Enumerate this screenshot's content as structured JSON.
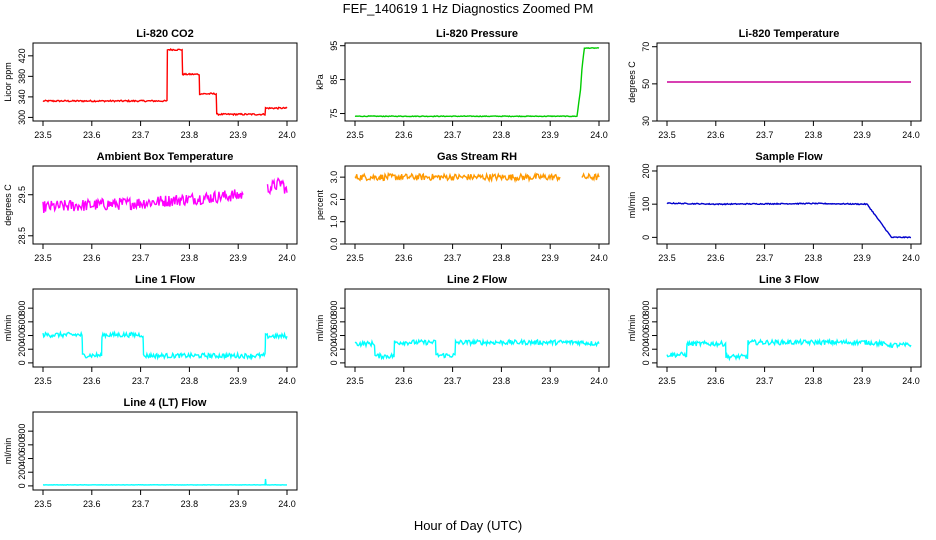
{
  "figure": {
    "title": "FEF_140619  1 Hz Diagnostics Zoomed PM",
    "xlabel": "Hour of Day (UTC)"
  },
  "chart_data": [
    {
      "type": "line",
      "title": "Li-820 CO2",
      "ylabel": "Licor ppm",
      "color": "#ff0000",
      "xlim": [
        23.5,
        24.0
      ],
      "ylim": [
        293,
        445
      ],
      "xticks": [
        "23.5",
        "23.6",
        "23.7",
        "23.8",
        "23.9",
        "24.0"
      ],
      "yticks": [
        "300",
        "340",
        "380",
        "420"
      ],
      "noise": 1.5,
      "segments": [
        [
          [
            23.5,
            332
          ],
          [
            23.754,
            332
          ],
          [
            23.755,
            432
          ],
          [
            23.785,
            432
          ],
          [
            23.786,
            384
          ],
          [
            23.82,
            384
          ],
          [
            23.821,
            346
          ],
          [
            23.855,
            346
          ],
          [
            23.856,
            306
          ],
          [
            23.955,
            306
          ],
          [
            23.956,
            318
          ],
          [
            24.0,
            318
          ]
        ]
      ]
    },
    {
      "type": "line",
      "title": "Li-820 Pressure",
      "ylabel": "kPa",
      "color": "#00cc00",
      "xlim": [
        23.5,
        24.0
      ],
      "ylim": [
        72.8,
        95.8
      ],
      "xticks": [
        "23.5",
        "23.6",
        "23.7",
        "23.8",
        "23.9",
        "24.0"
      ],
      "yticks": [
        "75",
        "85",
        "95"
      ],
      "noise": 0.1,
      "segments": [
        [
          [
            23.5,
            74.2
          ],
          [
            23.955,
            74.2
          ],
          [
            23.962,
            82
          ],
          [
            23.965,
            88
          ],
          [
            23.97,
            94.3
          ],
          [
            24.0,
            94.3
          ]
        ]
      ]
    },
    {
      "type": "line",
      "title": "Li-820 Temperature",
      "ylabel": "degrees C",
      "color": "#cc0099",
      "xlim": [
        23.5,
        24.0
      ],
      "ylim": [
        30,
        72
      ],
      "xticks": [
        "23.5",
        "23.6",
        "23.7",
        "23.8",
        "23.9",
        "24.0"
      ],
      "yticks": [
        "30",
        "50",
        "70"
      ],
      "noise": 0,
      "segments": [
        [
          [
            23.5,
            51
          ],
          [
            24.0,
            51
          ]
        ]
      ]
    },
    {
      "type": "line",
      "title": "Ambient Box Temperature",
      "ylabel": "degrees C",
      "color": "#ff00ff",
      "xlim": [
        23.5,
        24.0
      ],
      "ylim": [
        28.3,
        30.2
      ],
      "xticks": [
        "23.5",
        "23.6",
        "23.7",
        "23.8",
        "23.9",
        "24.0"
      ],
      "yticks": [
        "28.5",
        "29.5"
      ],
      "noise": 0.15,
      "segments": [
        [
          [
            23.5,
            29.2
          ],
          [
            23.7,
            29.3
          ],
          [
            23.91,
            29.5
          ]
        ],
        [
          [
            23.96,
            29.65
          ],
          [
            23.99,
            29.8
          ],
          [
            24.0,
            29.55
          ]
        ]
      ]
    },
    {
      "type": "line",
      "title": "Gas Stream RH",
      "ylabel": "percent",
      "color": "#ff9900",
      "xlim": [
        23.5,
        24.0
      ],
      "ylim": [
        0,
        3.5
      ],
      "xticks": [
        "23.5",
        "23.6",
        "23.7",
        "23.8",
        "23.9",
        "24.0"
      ],
      "yticks": [
        "0.0",
        "1.0",
        "2.0",
        "3.0"
      ],
      "noise": 0.15,
      "segments": [
        [
          [
            23.5,
            3.0
          ],
          [
            23.92,
            3.0
          ]
        ],
        [
          [
            23.965,
            3.0
          ],
          [
            24.0,
            3.0
          ]
        ]
      ]
    },
    {
      "type": "line",
      "title": "Sample Flow",
      "ylabel": "ml/min",
      "color": "#0000cc",
      "xlim": [
        23.5,
        24.0
      ],
      "ylim": [
        -20,
        215
      ],
      "xticks": [
        "23.5",
        "23.6",
        "23.7",
        "23.8",
        "23.9",
        "24.0"
      ],
      "yticks": [
        "0",
        "100",
        "200"
      ],
      "noise": 1.5,
      "segments": [
        [
          [
            23.5,
            103
          ],
          [
            23.6,
            100
          ],
          [
            23.7,
            101
          ],
          [
            23.8,
            102
          ],
          [
            23.91,
            100
          ],
          [
            23.96,
            0
          ],
          [
            24.0,
            0
          ]
        ]
      ]
    },
    {
      "type": "line",
      "title": "Line 1 Flow",
      "ylabel": "ml/min",
      "color": "#00ffff",
      "xlim": [
        23.5,
        24.0
      ],
      "ylim": [
        -60,
        1080
      ],
      "xticks": [
        "23.5",
        "23.6",
        "23.7",
        "23.8",
        "23.9",
        "24.0"
      ],
      "yticks": [
        "0",
        "200",
        "400",
        "600",
        "800"
      ],
      "noise": 35,
      "segments": [
        [
          [
            23.5,
            410
          ],
          [
            23.58,
            410
          ],
          [
            23.581,
            110
          ],
          [
            23.62,
            110
          ],
          [
            23.621,
            410
          ],
          [
            23.705,
            410
          ],
          [
            23.706,
            105
          ],
          [
            23.955,
            105
          ],
          [
            23.956,
            390
          ],
          [
            24.0,
            390
          ]
        ]
      ]
    },
    {
      "type": "line",
      "title": "Line 2 Flow",
      "ylabel": "ml/min",
      "color": "#00ffff",
      "xlim": [
        23.5,
        24.0
      ],
      "ylim": [
        -60,
        1080
      ],
      "xticks": [
        "23.5",
        "23.6",
        "23.7",
        "23.8",
        "23.9",
        "24.0"
      ],
      "yticks": [
        "0",
        "200",
        "400",
        "600",
        "800"
      ],
      "noise": 35,
      "segments": [
        [
          [
            23.5,
            280
          ],
          [
            23.54,
            280
          ],
          [
            23.541,
            100
          ],
          [
            23.58,
            100
          ],
          [
            23.581,
            300
          ],
          [
            23.665,
            300
          ],
          [
            23.666,
            110
          ],
          [
            23.705,
            110
          ],
          [
            23.706,
            300
          ],
          [
            23.915,
            300
          ],
          [
            23.96,
            300
          ],
          [
            24.0,
            280
          ]
        ]
      ]
    },
    {
      "type": "line",
      "title": "Line 3 Flow",
      "ylabel": "ml/min",
      "color": "#00ffff",
      "xlim": [
        23.5,
        24.0
      ],
      "ylim": [
        -60,
        1080
      ],
      "xticks": [
        "23.5",
        "23.6",
        "23.7",
        "23.8",
        "23.9",
        "24.0"
      ],
      "yticks": [
        "0",
        "200",
        "400",
        "600",
        "800"
      ],
      "noise": 35,
      "segments": [
        [
          [
            23.5,
            120
          ],
          [
            23.54,
            120
          ],
          [
            23.541,
            280
          ],
          [
            23.62,
            280
          ],
          [
            23.621,
            90
          ],
          [
            23.665,
            90
          ],
          [
            23.666,
            300
          ],
          [
            23.915,
            300
          ],
          [
            23.96,
            260
          ],
          [
            24.0,
            260
          ]
        ]
      ]
    },
    {
      "type": "line",
      "title": "Line 4 (LT) Flow",
      "ylabel": "ml/min",
      "color": "#00ffff",
      "xlim": [
        23.5,
        24.0
      ],
      "ylim": [
        -60,
        1080
      ],
      "xticks": [
        "23.5",
        "23.6",
        "23.7",
        "23.8",
        "23.9",
        "24.0"
      ],
      "yticks": [
        "0",
        "200",
        "400",
        "600",
        "800"
      ],
      "noise": 2,
      "segments": [
        [
          [
            23.5,
            15
          ],
          [
            23.955,
            15
          ],
          [
            23.956,
            100
          ],
          [
            23.957,
            15
          ],
          [
            24.0,
            15
          ]
        ]
      ]
    }
  ]
}
